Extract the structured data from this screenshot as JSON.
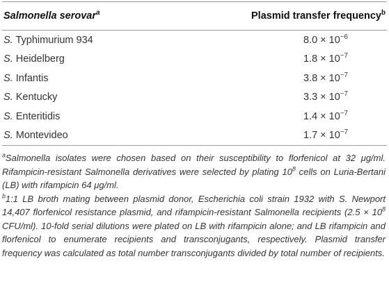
{
  "table": {
    "header": [
      {
        "text": "Salmonella serovar",
        "sup": "a"
      },
      {
        "text": "Plasmid transfer frequency",
        "sup": "b"
      }
    ],
    "rows": [
      {
        "genus": "S.",
        "name": "Typhimurium 934",
        "base": "8.0 × 10",
        "exp": "−6"
      },
      {
        "genus": "S.",
        "name": "Heidelberg",
        "base": "1.8 × 10",
        "exp": "−7"
      },
      {
        "genus": "S.",
        "name": "Infantis",
        "base": "3.8 × 10",
        "exp": "−7"
      },
      {
        "genus": "S.",
        "name": "Kentucky",
        "base": "3.3 × 10",
        "exp": "−7"
      },
      {
        "genus": "S.",
        "name": "Enteritidis",
        "base": "1.4 × 10",
        "exp": "−7"
      },
      {
        "genus": "S.",
        "name": "Montevideo",
        "base": "1.7 × 10",
        "exp": "−7"
      }
    ]
  },
  "footnotes": [
    {
      "marker": "a",
      "parts": [
        {
          "text": "Salmonella isolates were chosen based on their susceptibility to florfenicol at 32 μg/ml. Rifampicin-resistant Salmonella derivatives were selected by plating 10"
        },
        {
          "sup": "8"
        },
        {
          "text": " cells on Luria-Bertani (LB) with rifampicin 64 μg/ml."
        }
      ]
    },
    {
      "marker": "b",
      "parts": [
        {
          "text": "1:1 LB broth mating between plasmid donor, Escherichia coli strain 1932 with S. Newport 14,407 florfenicol resistance plasmid, and rifampicin-resistant Salmonella recipients (2.5 × 10"
        },
        {
          "sup": "8"
        },
        {
          "text": " CFU/ml). 10-fold serial dilutions were plated on LB with rifampicin alone; and LB rifampicin and florfenicol to enumerate recipients and transconjugants, respectively. Plasmid transfer frequency was calculated as total number transconjugants divided by total number of recipients."
        }
      ]
    }
  ]
}
